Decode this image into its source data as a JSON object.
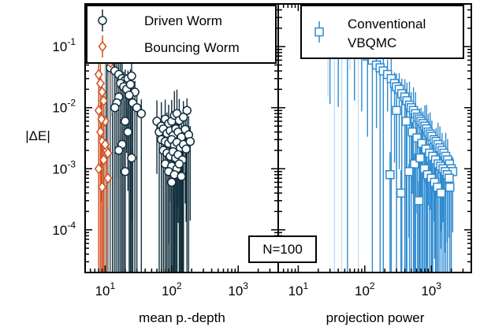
{
  "chart_data": [
    {
      "type": "scatter",
      "panel": "left",
      "xlabel": "mean p.-depth",
      "ylabel": "|ΔE|",
      "xscale": "log",
      "yscale": "log",
      "xlim": [
        5,
        4000
      ],
      "ylim": [
        2e-05,
        0.5
      ],
      "x_ticks": [
        10,
        100,
        1000
      ],
      "x_tick_labels": [
        {
          "base": "10",
          "exp": "1"
        },
        {
          "base": "10",
          "exp": "2"
        },
        {
          "base": "10",
          "exp": "3"
        }
      ],
      "y_ticks": [
        0.0001,
        0.001,
        0.01,
        0.1
      ],
      "y_tick_labels": [
        {
          "base": "10",
          "exp": "-4"
        },
        {
          "base": "10",
          "exp": "-3"
        },
        {
          "base": "10",
          "exp": "-2"
        },
        {
          "base": "10",
          "exp": "-1"
        }
      ],
      "legend": {
        "placement": "top-right",
        "entries": [
          "Driven Worm",
          "Bouncing Worm"
        ]
      },
      "annotation": "N=100",
      "series": [
        {
          "name": "Driven Worm",
          "marker": "circle",
          "color": "#0f2d3a",
          "points": [
            {
              "x": 10,
              "y": 0.25
            },
            {
              "x": 11,
              "y": 0.2
            },
            {
              "x": 12,
              "y": 0.18
            },
            {
              "x": 13,
              "y": 0.22
            },
            {
              "x": 14,
              "y": 0.16
            },
            {
              "x": 12,
              "y": 0.12
            },
            {
              "x": 10.5,
              "y": 0.1
            },
            {
              "x": 15,
              "y": 0.09
            },
            {
              "x": 11,
              "y": 0.07
            },
            {
              "x": 13,
              "y": 0.06
            },
            {
              "x": 12,
              "y": 0.045
            },
            {
              "x": 14,
              "y": 0.04
            },
            {
              "x": 16,
              "y": 0.035
            },
            {
              "x": 18,
              "y": 0.03
            },
            {
              "x": 20,
              "y": 0.028
            },
            {
              "x": 22,
              "y": 0.03
            },
            {
              "x": 25,
              "y": 0.033
            },
            {
              "x": 17,
              "y": 0.025
            },
            {
              "x": 19,
              "y": 0.022
            },
            {
              "x": 21,
              "y": 0.02
            },
            {
              "x": 24,
              "y": 0.024
            },
            {
              "x": 28,
              "y": 0.018
            },
            {
              "x": 23,
              "y": 0.016
            },
            {
              "x": 16,
              "y": 0.015
            },
            {
              "x": 15,
              "y": 0.012
            },
            {
              "x": 26,
              "y": 0.012
            },
            {
              "x": 14,
              "y": 0.01
            },
            {
              "x": 30,
              "y": 0.01
            },
            {
              "x": 35,
              "y": 0.008
            },
            {
              "x": 20,
              "y": 0.006
            },
            {
              "x": 22,
              "y": 0.004
            },
            {
              "x": 18,
              "y": 0.0025
            },
            {
              "x": 25,
              "y": 0.0015
            },
            {
              "x": 20,
              "y": 0.0009
            },
            {
              "x": 16,
              "y": 0.002
            },
            {
              "x": 60,
              "y": 0.006
            },
            {
              "x": 70,
              "y": 0.005
            },
            {
              "x": 80,
              "y": 0.0065
            },
            {
              "x": 90,
              "y": 0.0055
            },
            {
              "x": 100,
              "y": 0.006
            },
            {
              "x": 110,
              "y": 0.0075
            },
            {
              "x": 120,
              "y": 0.008
            },
            {
              "x": 130,
              "y": 0.0062
            },
            {
              "x": 150,
              "y": 0.007
            },
            {
              "x": 170,
              "y": 0.009
            },
            {
              "x": 65,
              "y": 0.004
            },
            {
              "x": 75,
              "y": 0.0045
            },
            {
              "x": 85,
              "y": 0.0038
            },
            {
              "x": 95,
              "y": 0.0042
            },
            {
              "x": 105,
              "y": 0.0035
            },
            {
              "x": 115,
              "y": 0.0045
            },
            {
              "x": 125,
              "y": 0.004
            },
            {
              "x": 140,
              "y": 0.0033
            },
            {
              "x": 160,
              "y": 0.0044
            },
            {
              "x": 180,
              "y": 0.0036
            },
            {
              "x": 70,
              "y": 0.003
            },
            {
              "x": 80,
              "y": 0.0028
            },
            {
              "x": 90,
              "y": 0.0026
            },
            {
              "x": 100,
              "y": 0.003
            },
            {
              "x": 110,
              "y": 0.0024
            },
            {
              "x": 120,
              "y": 0.0027
            },
            {
              "x": 135,
              "y": 0.0022
            },
            {
              "x": 150,
              "y": 0.0025
            },
            {
              "x": 165,
              "y": 0.0021
            },
            {
              "x": 190,
              "y": 0.0028
            },
            {
              "x": 75,
              "y": 0.002
            },
            {
              "x": 85,
              "y": 0.0018
            },
            {
              "x": 95,
              "y": 0.0016
            },
            {
              "x": 105,
              "y": 0.0019
            },
            {
              "x": 115,
              "y": 0.0015
            },
            {
              "x": 125,
              "y": 0.0017
            },
            {
              "x": 145,
              "y": 0.0014
            },
            {
              "x": 80,
              "y": 0.0012
            },
            {
              "x": 100,
              "y": 0.0011
            },
            {
              "x": 120,
              "y": 0.001
            },
            {
              "x": 130,
              "y": 0.0012
            },
            {
              "x": 90,
              "y": 0.0009
            },
            {
              "x": 110,
              "y": 0.0008
            },
            {
              "x": 140,
              "y": 0.00075
            },
            {
              "x": 100,
              "y": 0.0006
            }
          ]
        },
        {
          "name": "Bouncing Worm",
          "marker": "diamond",
          "color": "#d2501e",
          "points": [
            {
              "x": 8,
              "y": 0.035
            },
            {
              "x": 8.5,
              "y": 0.025
            },
            {
              "x": 9,
              "y": 0.018
            },
            {
              "x": 9.5,
              "y": 0.013
            },
            {
              "x": 8,
              "y": 0.009
            },
            {
              "x": 10,
              "y": 0.006
            },
            {
              "x": 8.5,
              "y": 0.004
            },
            {
              "x": 9,
              "y": 0.0028
            },
            {
              "x": 10.5,
              "y": 0.002
            },
            {
              "x": 9.5,
              "y": 0.0014
            },
            {
              "x": 8,
              "y": 0.001
            },
            {
              "x": 11,
              "y": 0.0007
            },
            {
              "x": 9,
              "y": 0.0005
            },
            {
              "x": 12,
              "y": 0.055
            },
            {
              "x": 10,
              "y": 0.0025
            },
            {
              "x": 11,
              "y": 0.0018
            },
            {
              "x": 8.8,
              "y": 0.0065
            }
          ]
        },
        {
          "name": "",
          "marker": "circle-faded",
          "color": "#b0b8bc",
          "points": [
            {
              "x": 10,
              "y": 0.09
            },
            {
              "x": 11,
              "y": 0.08
            },
            {
              "x": 12,
              "y": 0.11
            },
            {
              "x": 10,
              "y": 0.065
            },
            {
              "x": 12.5,
              "y": 0.07
            },
            {
              "x": 13,
              "y": 0.085
            },
            {
              "x": 11.5,
              "y": 0.06
            }
          ]
        }
      ]
    },
    {
      "type": "scatter",
      "panel": "right",
      "xlabel": "projection power",
      "xscale": "log",
      "yscale": "log",
      "xlim": [
        5,
        4000
      ],
      "ylim": [
        2e-05,
        0.5
      ],
      "x_ticks": [
        10,
        100,
        1000
      ],
      "x_tick_labels": [
        {
          "base": "10",
          "exp": "1"
        },
        {
          "base": "10",
          "exp": "2"
        },
        {
          "base": "10",
          "exp": "3"
        }
      ],
      "legend": {
        "placement": "top-right",
        "entries": [
          "Conventional\nVBQMC"
        ]
      },
      "series": [
        {
          "name": "Conventional\nVBQMC",
          "marker": "square",
          "color": "#2f8bd0",
          "points": [
            {
              "x": 30,
              "y": 0.25
            },
            {
              "x": 40,
              "y": 0.2
            },
            {
              "x": 55,
              "y": 0.15
            },
            {
              "x": 70,
              "y": 0.12
            },
            {
              "x": 90,
              "y": 0.09
            },
            {
              "x": 110,
              "y": 0.07
            },
            {
              "x": 130,
              "y": 0.06
            },
            {
              "x": 150,
              "y": 0.05
            },
            {
              "x": 170,
              "y": 0.045
            },
            {
              "x": 190,
              "y": 0.04
            },
            {
              "x": 220,
              "y": 0.035
            },
            {
              "x": 250,
              "y": 0.03
            },
            {
              "x": 280,
              "y": 0.025
            },
            {
              "x": 300,
              "y": 0.022
            },
            {
              "x": 330,
              "y": 0.02
            },
            {
              "x": 360,
              "y": 0.017
            },
            {
              "x": 400,
              "y": 0.015
            },
            {
              "x": 430,
              "y": 0.013
            },
            {
              "x": 470,
              "y": 0.011
            },
            {
              "x": 500,
              "y": 0.01
            },
            {
              "x": 540,
              "y": 0.009
            },
            {
              "x": 580,
              "y": 0.008
            },
            {
              "x": 620,
              "y": 0.007
            },
            {
              "x": 660,
              "y": 0.0065
            },
            {
              "x": 700,
              "y": 0.006
            },
            {
              "x": 750,
              "y": 0.0055
            },
            {
              "x": 800,
              "y": 0.005
            },
            {
              "x": 850,
              "y": 0.0045
            },
            {
              "x": 900,
              "y": 0.004
            },
            {
              "x": 960,
              "y": 0.0037
            },
            {
              "x": 1020,
              "y": 0.0034
            },
            {
              "x": 1100,
              "y": 0.003
            },
            {
              "x": 1180,
              "y": 0.0028
            },
            {
              "x": 1260,
              "y": 0.0025
            },
            {
              "x": 1350,
              "y": 0.0022
            },
            {
              "x": 1450,
              "y": 0.002
            },
            {
              "x": 1550,
              "y": 0.0018
            },
            {
              "x": 1650,
              "y": 0.0016
            },
            {
              "x": 1760,
              "y": 0.0014
            },
            {
              "x": 1880,
              "y": 0.0012
            },
            {
              "x": 2000,
              "y": 0.001
            },
            {
              "x": 2100,
              "y": 0.0009
            },
            {
              "x": 300,
              "y": 0.009
            },
            {
              "x": 420,
              "y": 0.006
            },
            {
              "x": 520,
              "y": 0.004
            },
            {
              "x": 610,
              "y": 0.0032
            },
            {
              "x": 720,
              "y": 0.0026
            },
            {
              "x": 830,
              "y": 0.0021
            },
            {
              "x": 940,
              "y": 0.0018
            },
            {
              "x": 1050,
              "y": 0.0016
            },
            {
              "x": 1160,
              "y": 0.0014
            },
            {
              "x": 1270,
              "y": 0.0012
            },
            {
              "x": 1380,
              "y": 0.0011
            },
            {
              "x": 1500,
              "y": 0.001
            },
            {
              "x": 1620,
              "y": 0.0009
            },
            {
              "x": 1740,
              "y": 0.0008
            },
            {
              "x": 1860,
              "y": 0.0007
            },
            {
              "x": 560,
              "y": 0.0012
            },
            {
              "x": 680,
              "y": 0.0015
            },
            {
              "x": 790,
              "y": 0.001
            },
            {
              "x": 880,
              "y": 0.0008
            },
            {
              "x": 1000,
              "y": 0.0007
            },
            {
              "x": 1120,
              "y": 0.0006
            },
            {
              "x": 1240,
              "y": 0.0005
            },
            {
              "x": 460,
              "y": 0.0009
            },
            {
              "x": 240,
              "y": 0.0008
            },
            {
              "x": 350,
              "y": 0.0004
            },
            {
              "x": 650,
              "y": 0.0003
            },
            {
              "x": 1400,
              "y": 0.0004
            },
            {
              "x": 1900,
              "y": 0.0005
            }
          ]
        },
        {
          "name": "",
          "marker": "square-faded",
          "color": "#a9d0ee",
          "points": [
            {
              "x": 28,
              "y": 0.3
            },
            {
              "x": 35,
              "y": 0.28
            },
            {
              "x": 45,
              "y": 0.22
            },
            {
              "x": 60,
              "y": 0.18
            },
            {
              "x": 80,
              "y": 0.14
            }
          ]
        }
      ]
    }
  ]
}
